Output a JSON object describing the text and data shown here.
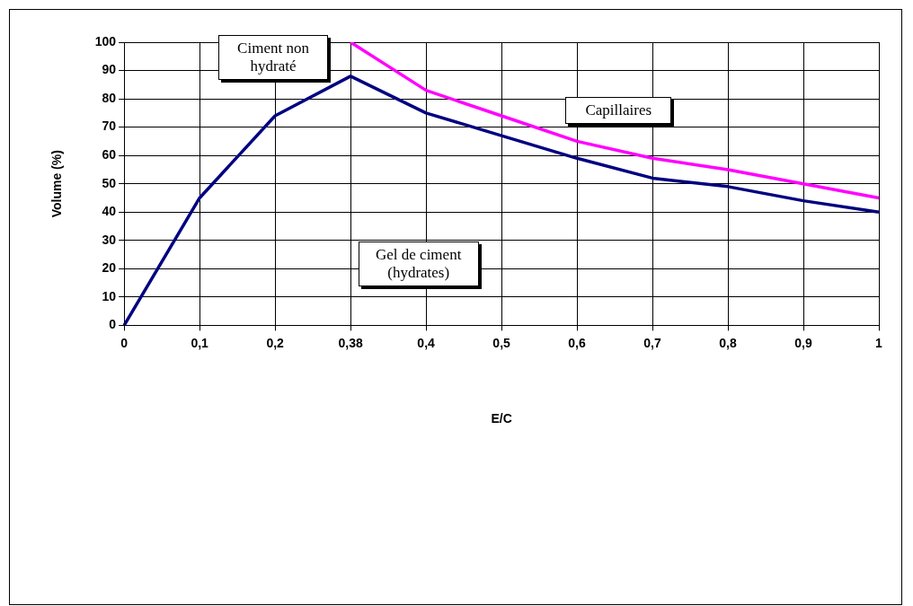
{
  "chart_data": {
    "type": "line",
    "xlabel": "E/C",
    "ylabel": "Volume (%)",
    "categories": [
      "0",
      "0,1",
      "0,2",
      "0,38",
      "0,4",
      "0,5",
      "0,6",
      "0,7",
      "0,8",
      "0,9",
      "1"
    ],
    "series": [
      {
        "color": "#000080",
        "values": [
          0,
          45,
          74,
          88,
          75,
          67,
          59,
          52,
          49,
          44,
          40
        ]
      },
      {
        "color": "#ff00ff",
        "values": [
          null,
          null,
          null,
          100,
          83,
          74,
          65,
          59,
          55,
          50,
          45
        ]
      }
    ],
    "ylim": [
      0,
      100
    ],
    "yticks": [
      0,
      10,
      20,
      30,
      40,
      50,
      60,
      70,
      80,
      90,
      100
    ],
    "grid": true,
    "legend": false,
    "marker": "none",
    "line_style": "solid",
    "annotations": [
      "Ciment non hydraté",
      "Capillaires",
      "Gel de ciment (hydrates)"
    ]
  }
}
